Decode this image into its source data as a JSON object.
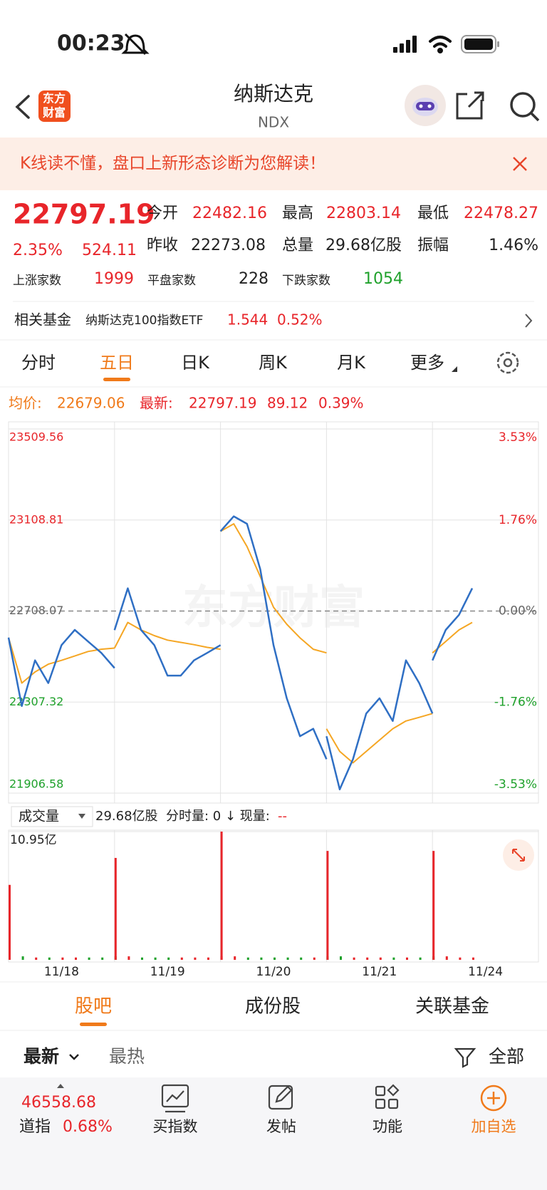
{
  "status": {
    "time": "00:23"
  },
  "header": {
    "logo_top": "东方",
    "logo_bottom": "财富",
    "title": "纳斯达克",
    "subtitle": "NDX"
  },
  "banner": {
    "text": "K线读不懂，盘口上新形态诊断为您解读！"
  },
  "quote": {
    "price": "22797.19",
    "change_pct": "2.35%",
    "change": "524.11",
    "stats": [
      {
        "label": "今开",
        "value": "22482.16"
      },
      {
        "label": "最高",
        "value": "22803.14"
      },
      {
        "label": "最低",
        "value": "22478.27"
      },
      {
        "label": "昨收",
        "value": "22273.08"
      },
      {
        "label": "总量",
        "value": "29.68亿股"
      },
      {
        "label": "振幅",
        "value": "1.46%"
      }
    ],
    "breadth": [
      {
        "label": "上涨家数",
        "value": "1999"
      },
      {
        "label": "平盘家数",
        "value": "228"
      },
      {
        "label": "下跌家数",
        "value": "1054"
      }
    ]
  },
  "fund": {
    "label": "相关基金",
    "name": "纳斯达克100指数ETF",
    "price": "1.544",
    "change_pct": "0.52%"
  },
  "tabs": {
    "items": [
      "分时",
      "五日",
      "日K",
      "周K",
      "月K",
      "更多"
    ],
    "active": 1
  },
  "chart_data": {
    "type": "line",
    "avg_label": "均价:",
    "avg_value": "22679.06",
    "latest_label": "最新:",
    "latest_value": "22797.19",
    "latest_change": "89.12",
    "latest_change_pct": "0.39%",
    "watermark": "东方财富",
    "ylim": [
      21906.58,
      23509.56
    ],
    "yticks": [
      23509.56,
      23108.81,
      22708.07,
      22307.32,
      21906.58
    ],
    "pct_ticks": [
      "3.53%",
      "1.76%",
      "0.00%",
      "-1.76%",
      "-3.53%"
    ],
    "price_color": "#2f6fc4",
    "avg_color": "#f5a623",
    "days": [
      {
        "date": "11/18",
        "price": [
          22591,
          22290,
          22491,
          22391,
          22558,
          22625,
          22574,
          22524,
          22457
        ],
        "avg": [
          22591,
          22391,
          22440,
          22474,
          22491,
          22510,
          22530,
          22540,
          22545
        ],
        "volume": [
          6.4,
          0.3,
          0.2,
          0.2,
          0.2,
          0.2,
          0.2,
          0.2,
          0.3
        ]
      },
      {
        "date": "11/19",
        "price": [
          22624,
          22808,
          22625,
          22558,
          22424,
          22424,
          22491,
          22524,
          22558
        ],
        "avg": [
          22545,
          22658,
          22625,
          22600,
          22580,
          22570,
          22560,
          22548,
          22540
        ],
        "volume": [
          8.7,
          0.3,
          0.2,
          0.2,
          0.2,
          0.2,
          0.2,
          0.2,
          0.3
        ]
      },
      {
        "date": "11/20",
        "price": [
          23059,
          23125,
          23092,
          22892,
          22558,
          22324,
          22157,
          22190,
          22056
        ],
        "avg": [
          23059,
          23092,
          22992,
          22860,
          22725,
          22650,
          22590,
          22540,
          22524
        ],
        "volume": [
          10.95,
          0.3,
          0.2,
          0.2,
          0.2,
          0.2,
          0.2,
          0.2,
          0.3
        ]
      },
      {
        "date": "11/21",
        "price": [
          22157,
          21923,
          22056,
          22257,
          22324,
          22224,
          22491,
          22391,
          22257
        ],
        "avg": [
          22190,
          22090,
          22040,
          22090,
          22140,
          22190,
          22224,
          22240,
          22257
        ],
        "volume": [
          9.3,
          0.3,
          0.2,
          0.2,
          0.2,
          0.2,
          0.2,
          0.2,
          0.3
        ]
      },
      {
        "date": "11/24",
        "price": [
          22491,
          22625,
          22691,
          22808,
          null,
          null,
          null,
          null,
          null
        ],
        "avg": [
          22524,
          22574,
          22625,
          22658,
          null,
          null,
          null,
          null,
          null
        ],
        "volume": [
          9.3,
          0.3,
          0.2,
          0.2,
          null,
          null,
          null,
          null,
          null
        ]
      }
    ],
    "volume": {
      "label": "成交量",
      "total": "29.68亿股",
      "detail": "分时量: 0 ↓ 现量:",
      "detail_value": "--",
      "ylim": [
        0,
        10.95
      ],
      "yticks": [
        {
          "value": 10.95,
          "label": "10.95亿"
        }
      ],
      "up_color": "#e8252a",
      "down_color": "#1fa12b"
    }
  },
  "feed": {
    "tabs": [
      "股吧",
      "成份股",
      "关联基金"
    ],
    "active": 0,
    "sort": [
      "最新",
      "最热"
    ],
    "filter": "全部"
  },
  "bottom_bar": {
    "index_value": "46558.68",
    "index_name": "道指",
    "index_pct": "0.68%",
    "buttons": [
      "买指数",
      "发帖",
      "功能",
      "加自选"
    ]
  }
}
